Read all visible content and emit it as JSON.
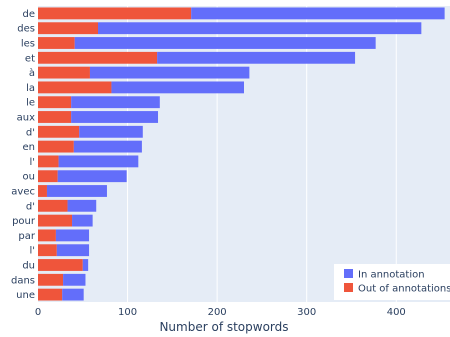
{
  "chart_data": {
    "type": "bar",
    "orientation": "horizontal",
    "stacked": true,
    "categories": [
      "de",
      "des",
      "les",
      "et",
      "à",
      "la",
      "le",
      "aux",
      "d'",
      "en",
      "l'",
      "ou",
      "avec",
      "d'",
      "pour",
      "par",
      "l'",
      "du",
      "dans",
      "une"
    ],
    "series": [
      {
        "name": "Out of annotations",
        "color": "#ef553b",
        "values": [
          171,
          67,
          41,
          133,
          58,
          82,
          37,
          37,
          46,
          40,
          23,
          22,
          10,
          33,
          38,
          20,
          21,
          50,
          28,
          27
        ]
      },
      {
        "name": "In annotation",
        "color": "#636efa",
        "values": [
          283,
          361,
          336,
          221,
          178,
          148,
          99,
          97,
          71,
          76,
          89,
          77,
          67,
          32,
          23,
          37,
          36,
          6,
          25,
          24
        ]
      }
    ],
    "xlabel": "Number of stopwords",
    "ylabel": "",
    "xlim": [
      0,
      460
    ],
    "xticks": [
      0,
      100,
      200,
      300,
      400
    ],
    "grid": true,
    "legend_position": "bottom-right",
    "legend_order": [
      "In annotation",
      "Out of annotations"
    ],
    "plot_background": "#e5ecf6"
  }
}
